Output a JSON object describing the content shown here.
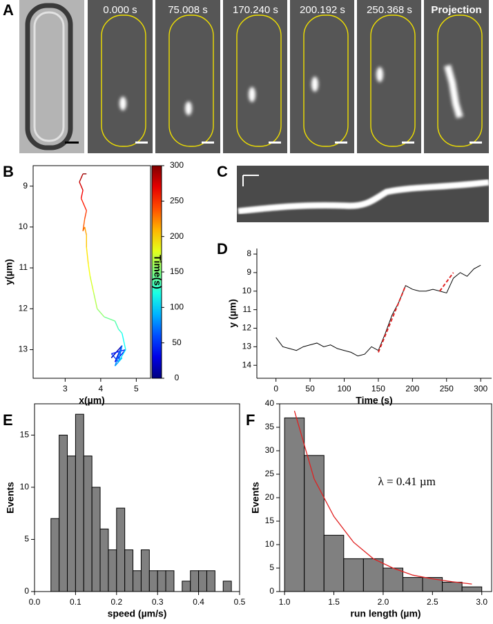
{
  "panels": [
    "A",
    "B",
    "C",
    "D",
    "E",
    "F"
  ],
  "panel_a": {
    "frames": [
      "0.000 s",
      "75.008 s",
      "170.240 s",
      "200.192 s",
      "250.368 s"
    ],
    "projection": "Projection"
  },
  "chart_data": [
    {
      "type": "trajectory",
      "xlabel": "x(µm)",
      "ylabel": "y(µm)",
      "box": true,
      "colormap": "jet",
      "x": [
        4.5,
        4.3,
        4.6,
        4.4,
        4.7,
        4.3,
        4.5,
        4.6,
        4.4,
        4.6,
        4.5,
        4.7,
        4.6,
        4.5,
        4.4,
        4.1,
        3.9,
        3.8,
        3.7,
        3.65,
        3.6,
        3.6,
        3.55,
        3.5,
        3.55,
        3.6,
        3.45,
        3.5,
        3.4,
        3.5,
        3.6
      ],
      "time": [
        0,
        10,
        20,
        30,
        40,
        50,
        60,
        70,
        80,
        90,
        100,
        110,
        120,
        130,
        140,
        150,
        160,
        170,
        180,
        190,
        200,
        210,
        220,
        230,
        240,
        250,
        260,
        270,
        280,
        290,
        300
      ],
      "series": [
        {
          "values": [
            13.0,
            13.2,
            12.9,
            13.3,
            13.0,
            13.1,
            13.3,
            12.9,
            13.4,
            13.2,
            13.3,
            13.0,
            12.6,
            12.5,
            12.3,
            12.2,
            12.0,
            11.6,
            11.2,
            10.9,
            10.5,
            10.2,
            10.0,
            10.1,
            9.8,
            9.6,
            9.3,
            9.1,
            8.9,
            8.7,
            8.7
          ]
        }
      ],
      "xlim": [
        2.1,
        5.4
      ],
      "xticks": [
        3,
        4,
        5
      ],
      "ylim": [
        13.7,
        8.5
      ],
      "yticks": [
        9,
        10,
        11,
        12,
        13
      ],
      "colorbar": {
        "label": "Time(s)",
        "lim": [
          0,
          300
        ],
        "ticks": [
          0,
          50,
          100,
          150,
          200,
          250,
          300
        ]
      }
    },
    {
      "type": "line",
      "xlabel": "Time (s)",
      "ylabel": "y (µm)",
      "box": false,
      "x": [
        0,
        10,
        20,
        30,
        40,
        50,
        60,
        70,
        80,
        90,
        100,
        110,
        120,
        130,
        140,
        150,
        160,
        170,
        180,
        190,
        200,
        210,
        220,
        230,
        240,
        250,
        260,
        270,
        280,
        290,
        300
      ],
      "series": [
        {
          "color": "#000000",
          "style": "solid",
          "values": [
            12.5,
            13.0,
            13.1,
            13.2,
            13.0,
            12.9,
            12.8,
            13.0,
            12.9,
            13.1,
            13.2,
            13.3,
            13.5,
            13.4,
            13.0,
            13.2,
            12.3,
            11.3,
            10.6,
            9.7,
            9.9,
            10.0,
            10.0,
            9.9,
            10.0,
            10.1,
            9.3,
            9.0,
            9.2,
            8.8,
            8.6
          ]
        },
        {
          "color": "#e02020",
          "style": "dashed",
          "values": [
            null,
            null,
            null,
            null,
            null,
            null,
            null,
            null,
            null,
            null,
            null,
            null,
            null,
            null,
            null,
            13.3,
            12.4,
            11.5,
            10.6,
            9.7,
            null,
            null,
            null,
            null,
            10.0,
            9.5,
            9.0,
            null,
            null,
            null,
            null
          ]
        }
      ],
      "xlim": [
        -28,
        316
      ],
      "xticks": [
        0,
        50,
        100,
        150,
        200,
        250,
        300
      ],
      "ylim": [
        14.7,
        7.7
      ],
      "yticks": [
        8,
        9,
        10,
        11,
        12,
        13,
        14
      ]
    },
    {
      "type": "histogram",
      "xlabel": "speed (µm/s)",
      "ylabel": "Events",
      "box": true,
      "color": "#808080",
      "bins": [
        0.04,
        0.06,
        0.08,
        0.1,
        0.12,
        0.14,
        0.16,
        0.18,
        0.2,
        0.22,
        0.24,
        0.26,
        0.28,
        0.3,
        0.32,
        0.34,
        0.36,
        0.38,
        0.4,
        0.42,
        0.44,
        0.46,
        0.48
      ],
      "values": [
        7,
        15,
        13,
        17,
        13,
        10,
        6,
        4,
        8,
        4,
        2,
        4,
        2,
        2,
        2,
        0,
        1,
        2,
        2,
        2,
        0,
        1
      ],
      "xlim": [
        0,
        0.5
      ],
      "xticks": [
        {
          "value": 0,
          "label": "0.0"
        },
        0.1,
        0.2,
        0.3,
        0.4,
        0.5
      ],
      "ylim": [
        0,
        18
      ],
      "yticks": [
        0,
        5,
        10,
        15
      ]
    },
    {
      "type": "histogram",
      "xlabel": "run length (µm)",
      "ylabel": "Events",
      "box": true,
      "color": "#808080",
      "bins": [
        1.0,
        1.2,
        1.4,
        1.6,
        1.8,
        2.0,
        2.2,
        2.4,
        2.6,
        2.8,
        3.0
      ],
      "values": [
        37,
        29,
        12,
        7,
        7,
        5,
        3,
        3,
        2,
        1
      ],
      "fit": {
        "color": "#e02020",
        "x": [
          1.1,
          1.3,
          1.5,
          1.7,
          1.9,
          2.1,
          2.3,
          2.5,
          2.7,
          2.9
        ],
        "values": [
          38.5,
          24,
          16,
          10.5,
          7,
          5,
          3.5,
          2.7,
          2.1,
          1.6
        ]
      },
      "annotation": "λ = 0.41 µm",
      "xlim": [
        0.95,
        3.1
      ],
      "xticks": [
        {
          "value": 1,
          "label": "1.0"
        },
        1.5,
        {
          "value": 2,
          "label": "2.0"
        },
        2.5,
        {
          "value": 3,
          "label": "3.0"
        }
      ],
      "ylim": [
        0,
        40
      ],
      "yticks": [
        0,
        5,
        10,
        15,
        20,
        25,
        30,
        35,
        40
      ]
    }
  ]
}
